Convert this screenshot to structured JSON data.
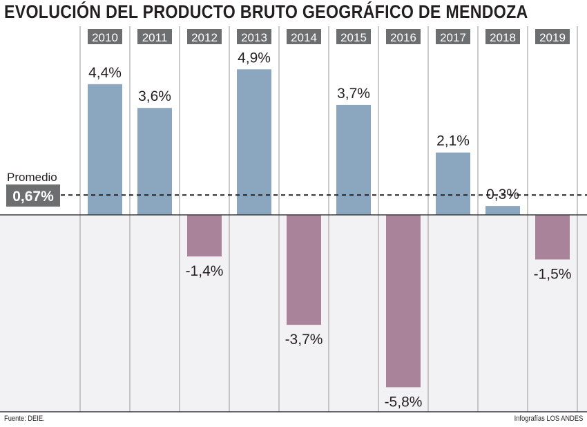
{
  "chart_data": {
    "type": "bar",
    "title": "EVOLUCIÓN DEL PRODUCTO BRUTO GEOGRÁFICO DE MENDOZA",
    "xlabel": "",
    "ylabel": "",
    "categories": [
      "2010",
      "2011",
      "2012",
      "2013",
      "2014",
      "2015",
      "2016",
      "2017",
      "2018",
      "2019"
    ],
    "values": [
      4.4,
      3.6,
      -1.4,
      4.9,
      -3.7,
      3.7,
      -5.8,
      2.1,
      0.3,
      -1.5
    ],
    "value_labels": [
      "4,4%",
      "3,6%",
      "-1,4%",
      "4,9%",
      "-3,7%",
      "3,7%",
      "-5,8%",
      "2,1%",
      "0,3%",
      "-1,5%"
    ],
    "ylim": [
      -6.6,
      6.4
    ],
    "grid": false,
    "reference_line": {
      "label": "Promedio",
      "value": 0.67,
      "value_label": "0,67%",
      "style": "dashed"
    },
    "colors": {
      "positive": "#8ba7c0",
      "negative": "#a98399",
      "year_badge": "#6d6e70",
      "avg_badge": "#6d6e70",
      "negative_area": "#f2f2f4",
      "divider": "#a7a7a9",
      "text": "#231f20"
    }
  },
  "footer": {
    "source": "Fuente: DEIE.",
    "credit": "Infografías LOS ANDES"
  }
}
